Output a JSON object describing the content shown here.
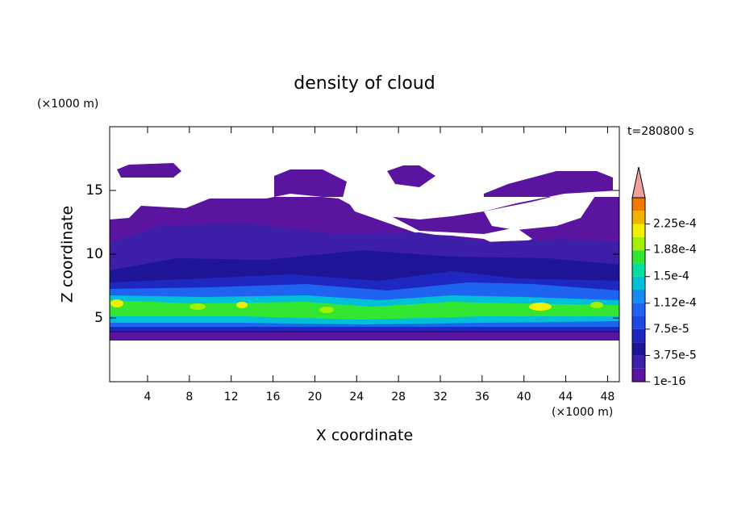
{
  "chart_data": {
    "type": "contour",
    "title": "density of cloud",
    "x_label": "X coordinate",
    "y_label": "Z coordinate",
    "x_unit": "(×1000 m)",
    "y_unit": "(×1000 m)",
    "annotation": "t=280800 s",
    "xlim": [
      0.375,
      49.125
    ],
    "xticks": [
      4,
      8,
      12,
      16,
      20,
      24,
      28,
      32,
      36,
      40,
      44,
      48
    ],
    "ylim": [
      0,
      20
    ],
    "yticks": [
      5,
      10,
      15
    ],
    "colorbar": {
      "lim": [
        1e-16,
        0.0002625
      ],
      "ticks": [
        {
          "value": 1e-16,
          "label": "1e-16"
        },
        {
          "value": 3.75e-05,
          "label": "3.75e-5"
        },
        {
          "value": 7.5e-05,
          "label": "7.5e-5"
        },
        {
          "value": 0.000112,
          "label": "1.12e-4"
        },
        {
          "value": 0.00015,
          "label": "1.5e-4"
        },
        {
          "value": 0.000188,
          "label": "1.88e-4"
        },
        {
          "value": 0.000225,
          "label": "2.25e-4"
        }
      ],
      "colors": [
        "#5a14a0",
        "#3c1ea8",
        "#1e1496",
        "#1e28c0",
        "#1e46e0",
        "#1e64f0",
        "#148cf0",
        "#00c0d8",
        "#00e0a0",
        "#32e632",
        "#a0f000",
        "#f0f000",
        "#f0b400",
        "#f07800",
        "#f03c00"
      ],
      "extend_color": "#f0a0a0"
    }
  }
}
